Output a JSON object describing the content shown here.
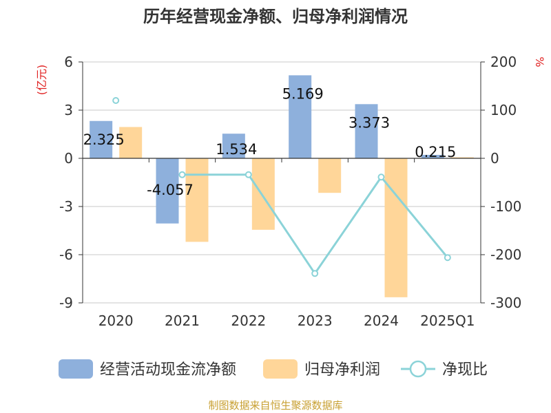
{
  "colors": {
    "cash_flow": "#8eb0dc",
    "profit": "#ffd699",
    "ratio": "#8bd3d8",
    "unit": "#e02020",
    "source": "#c8a032"
  },
  "source_text": "制图数据来自恒生聚源数据库",
  "chart_data": {
    "type": "bar",
    "title": "历年经营现金净额、归母净利润情况",
    "categories": [
      "2020",
      "2021",
      "2022",
      "2023",
      "2024",
      "2025Q1"
    ],
    "y_left": {
      "unit": "(亿元)",
      "range": [
        -9,
        6
      ],
      "ticks": [
        "6",
        "3",
        "0",
        "-3",
        "-6",
        "-9"
      ]
    },
    "y_right": {
      "unit": "%",
      "range": [
        -300,
        200
      ],
      "ticks": [
        "200",
        "100",
        "0",
        "-100",
        "-200",
        "-300"
      ]
    },
    "series": [
      {
        "name": "经营活动现金流净额",
        "type": "bar",
        "axis": "left",
        "values": [
          2.325,
          -4.057,
          1.534,
          5.169,
          3.373,
          0.215
        ],
        "labels": [
          "2.325",
          "-4.057",
          "1.534",
          "5.169",
          "3.373",
          "0.215"
        ]
      },
      {
        "name": "归母净利润",
        "type": "bar",
        "axis": "left",
        "values": [
          1.95,
          -5.2,
          -4.45,
          -2.15,
          -8.65,
          0.04
        ]
      },
      {
        "name": "净现比",
        "type": "line",
        "axis": "right",
        "values": [
          120,
          -34,
          -34,
          -239,
          -39,
          -206
        ]
      }
    ],
    "grid": true,
    "legend": "bottom"
  }
}
